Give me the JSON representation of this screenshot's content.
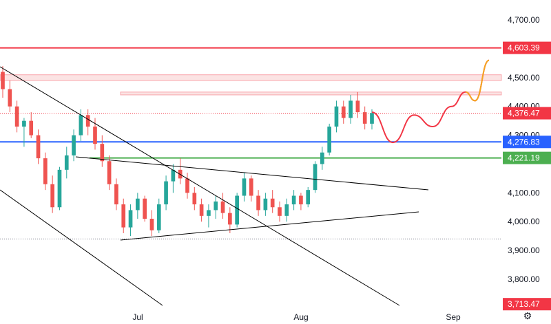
{
  "chart_data": {
    "type": "candlestick",
    "x_ticks": [
      "Jul",
      "Aug",
      "Sep"
    ],
    "y_ticks": [
      "4,700.00",
      "4,500.00",
      "4,400.00",
      "4,300.00",
      "4,100.00",
      "4,000.00",
      "3,900.00",
      "3,800.00"
    ],
    "ylim": [
      3690,
      4760
    ],
    "colors": {
      "up": "#26a69a",
      "down": "#ef5350",
      "red_line": "#f23645",
      "blue_line": "#2962ff",
      "green_line": "#4caf50",
      "zone": "#f8c8c8",
      "projection_red": "#f23645",
      "projection_orange": "#f5a623",
      "trend": "#000000"
    },
    "price_tags": [
      {
        "label": "4,603.39",
        "value": 4603.39,
        "color": "#f23645",
        "line": "solid"
      },
      {
        "label": "4,376.47",
        "value": 4376.47,
        "color": "#f23645",
        "line": "dotted"
      },
      {
        "label": "4,276.83",
        "value": 4276.83,
        "color": "#2962ff",
        "line": "solid"
      },
      {
        "label": "4,221.19",
        "value": 4221.19,
        "color": "#4caf50",
        "line": "solid"
      },
      {
        "label": "3,713.47",
        "value": 3713.47,
        "color": "#f23645",
        "line": "none"
      }
    ],
    "resistance_zones": [
      {
        "low": 4490,
        "high": 4510
      },
      {
        "low": 4440,
        "high": 4450
      }
    ],
    "dotted_low": 3940,
    "candles": [
      [
        4520,
        4540,
        4430,
        4460
      ],
      [
        4460,
        4490,
        4380,
        4400
      ],
      [
        4400,
        4420,
        4310,
        4330
      ],
      [
        4330,
        4360,
        4260,
        4350
      ],
      [
        4350,
        4380,
        4290,
        4300
      ],
      [
        4300,
        4320,
        4200,
        4220
      ],
      [
        4220,
        4240,
        4110,
        4130
      ],
      [
        4130,
        4160,
        4030,
        4050
      ],
      [
        4050,
        4190,
        4040,
        4180
      ],
      [
        4180,
        4260,
        4150,
        4230
      ],
      [
        4230,
        4320,
        4210,
        4300
      ],
      [
        4300,
        4390,
        4280,
        4370
      ],
      [
        4370,
        4390,
        4300,
        4330
      ],
      [
        4330,
        4360,
        4250,
        4270
      ],
      [
        4270,
        4300,
        4190,
        4210
      ],
      [
        4210,
        4230,
        4110,
        4130
      ],
      [
        4130,
        4150,
        4040,
        4060
      ],
      [
        4060,
        4080,
        3960,
        3980
      ],
      [
        3980,
        4060,
        3950,
        4040
      ],
      [
        4040,
        4100,
        4010,
        4080
      ],
      [
        4080,
        4090,
        4000,
        4010
      ],
      [
        4010,
        4040,
        3950,
        3970
      ],
      [
        3970,
        4080,
        3960,
        4060
      ],
      [
        4060,
        4160,
        4040,
        4140
      ],
      [
        4140,
        4200,
        4100,
        4180
      ],
      [
        4180,
        4220,
        4130,
        4150
      ],
      [
        4150,
        4170,
        4080,
        4100
      ],
      [
        4100,
        4120,
        4040,
        4060
      ],
      [
        4060,
        4080,
        4000,
        4020
      ],
      [
        4020,
        4060,
        3980,
        4040
      ],
      [
        4040,
        4090,
        4010,
        4070
      ],
      [
        4070,
        4100,
        4010,
        4030
      ],
      [
        4030,
        4050,
        3960,
        3990
      ],
      [
        3990,
        4100,
        3980,
        4090
      ],
      [
        4090,
        4170,
        4070,
        4150
      ],
      [
        4150,
        4160,
        4070,
        4090
      ],
      [
        4090,
        4110,
        4020,
        4040
      ],
      [
        4040,
        4100,
        4020,
        4080
      ],
      [
        4080,
        4110,
        4030,
        4050
      ],
      [
        4050,
        4070,
        4000,
        4020
      ],
      [
        4020,
        4080,
        4000,
        4060
      ],
      [
        4060,
        4110,
        4040,
        4090
      ],
      [
        4090,
        4100,
        4040,
        4060
      ],
      [
        4060,
        4120,
        4050,
        4110
      ],
      [
        4110,
        4210,
        4100,
        4200
      ],
      [
        4200,
        4260,
        4180,
        4240
      ],
      [
        4240,
        4340,
        4230,
        4330
      ],
      [
        4330,
        4420,
        4310,
        4400
      ],
      [
        4400,
        4420,
        4340,
        4360
      ],
      [
        4360,
        4440,
        4340,
        4420
      ],
      [
        4420,
        4450,
        4360,
        4380
      ],
      [
        4380,
        4400,
        4320,
        4340
      ],
      [
        4340,
        4390,
        4320,
        4377
      ]
    ],
    "projection": [
      [
        4380,
        0
      ],
      [
        4275,
        0.18
      ],
      [
        4370,
        0.36
      ],
      [
        4330,
        0.52
      ],
      [
        4400,
        0.68
      ],
      [
        4450,
        0.8
      ],
      [
        4420,
        0.88
      ],
      [
        4560,
        1.0
      ]
    ]
  }
}
